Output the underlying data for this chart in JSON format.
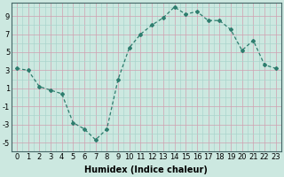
{
  "x": [
    0,
    1,
    2,
    3,
    4,
    5,
    6,
    7,
    8,
    9,
    10,
    11,
    12,
    13,
    14,
    15,
    16,
    17,
    18,
    19,
    20,
    21,
    22,
    23
  ],
  "y": [
    3.2,
    3.0,
    1.2,
    0.8,
    0.4,
    -2.8,
    -3.5,
    -4.7,
    -3.5,
    2.0,
    5.5,
    7.0,
    8.0,
    8.8,
    10.0,
    9.2,
    9.5,
    8.5,
    8.5,
    7.5,
    5.2,
    6.3,
    3.6,
    3.2
  ],
  "line_color": "#2e7d6e",
  "marker": "D",
  "marker_size": 2,
  "bg_color": "#cce8e0",
  "grid_minor_color": "#aad4cc",
  "grid_major_color": "#d0a0b0",
  "xlabel": "Humidex (Indice chaleur)",
  "xlim": [
    -0.5,
    23.5
  ],
  "ylim": [
    -6,
    10.5
  ],
  "yticks": [
    -5,
    -3,
    -1,
    1,
    3,
    5,
    7,
    9
  ],
  "xticks": [
    0,
    1,
    2,
    3,
    4,
    5,
    6,
    7,
    8,
    9,
    10,
    11,
    12,
    13,
    14,
    15,
    16,
    17,
    18,
    19,
    20,
    21,
    22,
    23
  ],
  "font_size": 6,
  "label_font_size": 7
}
